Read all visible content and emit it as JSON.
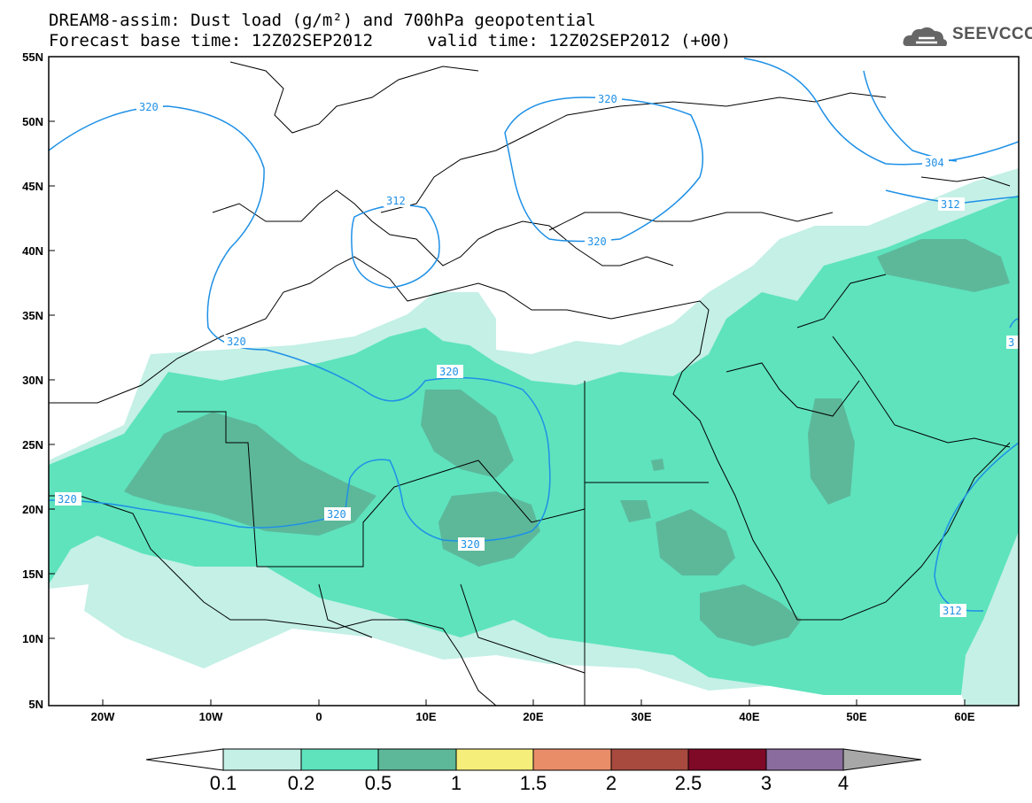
{
  "header": {
    "title_line1": "DREAM8-assim: Dust load (g/m²) and 700hPa geopotential",
    "title_line2": "Forecast base time: 12Z02SEP2012",
    "valid_time": "valid time: 12Z02SEP2012 (+00)",
    "logo_text": "SEEVCCC"
  },
  "map": {
    "lon_range": [
      -25,
      65
    ],
    "lat_range": [
      5,
      55
    ],
    "lat_labels": [
      "55N",
      "50N",
      "45N",
      "40N",
      "35N",
      "30N",
      "25N",
      "20N",
      "15N",
      "10N",
      "5N"
    ],
    "lon_labels": [
      "20W",
      "10W",
      "0",
      "10E",
      "20E",
      "30E",
      "40E",
      "50E",
      "60E"
    ],
    "contour_labels": [
      "320",
      "320",
      "312",
      "320",
      "320",
      "320",
      "320",
      "320",
      "320",
      "304",
      "312",
      "312",
      "312",
      "3"
    ]
  },
  "colorbar": {
    "levels": [
      "0.1",
      "0.2",
      "0.5",
      "1",
      "1.5",
      "2",
      "2.5",
      "3",
      "4"
    ],
    "colors": [
      "#c4f0e6",
      "#5ee3bd",
      "#5db89a",
      "#f5ee7a",
      "#e98d69",
      "#a84a3e",
      "#7e0a27",
      "#8a6c9e",
      "#a7a7a7"
    ]
  }
}
